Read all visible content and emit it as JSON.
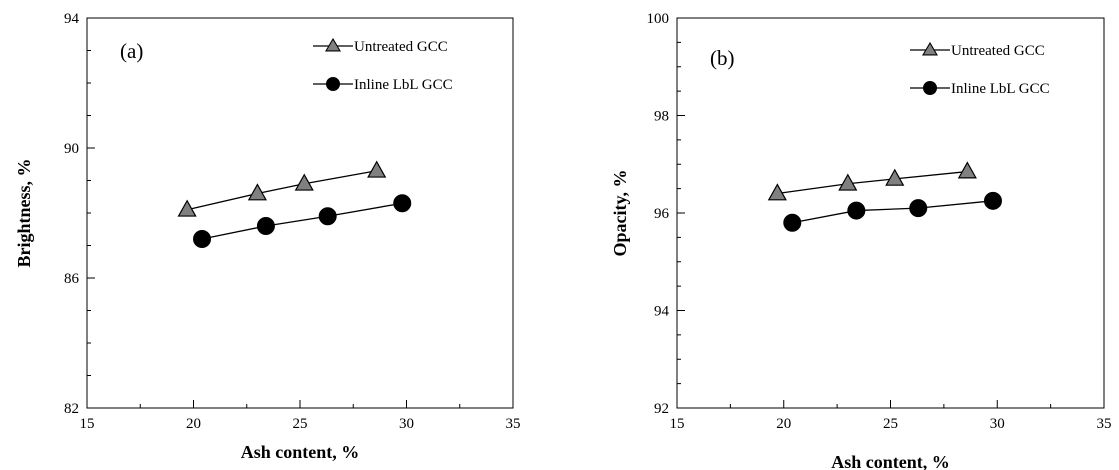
{
  "chart_data": [
    {
      "type": "line",
      "panel_label": "(a)",
      "xlabel": "Ash content, %",
      "ylabel": "Brightness, %",
      "xlim": [
        15,
        35
      ],
      "ylim": [
        82,
        94
      ],
      "xticks": [
        15,
        20,
        25,
        30,
        35
      ],
      "yticks": [
        82,
        86,
        90,
        94
      ],
      "grid": false,
      "legend_position": "top-right",
      "series": [
        {
          "name": "Untreated GCC",
          "marker": "triangle",
          "color": "#808080",
          "x": [
            19.7,
            23.0,
            25.2,
            28.6
          ],
          "y": [
            88.1,
            88.6,
            88.9,
            89.3
          ]
        },
        {
          "name": "Inline LbL GCC",
          "marker": "circle",
          "color": "#000000",
          "x": [
            20.4,
            23.4,
            26.3,
            29.8
          ],
          "y": [
            87.2,
            87.6,
            87.9,
            88.3
          ]
        }
      ]
    },
    {
      "type": "line",
      "panel_label": "(b)",
      "xlabel": "Ash content, %",
      "ylabel": "Opacity, %",
      "xlim": [
        15,
        35
      ],
      "ylim": [
        92,
        100
      ],
      "xticks": [
        15,
        20,
        25,
        30,
        35
      ],
      "yticks": [
        92,
        94,
        96,
        98,
        100
      ],
      "grid": false,
      "legend_position": "top-right",
      "series": [
        {
          "name": "Untreated GCC",
          "marker": "triangle",
          "color": "#808080",
          "x": [
            19.7,
            23.0,
            25.2,
            28.6
          ],
          "y": [
            96.4,
            96.6,
            96.7,
            96.85
          ]
        },
        {
          "name": "Inline LbL GCC",
          "marker": "circle",
          "color": "#000000",
          "x": [
            20.4,
            23.4,
            26.3,
            29.8
          ],
          "y": [
            95.8,
            96.05,
            96.1,
            96.25
          ]
        }
      ]
    }
  ]
}
